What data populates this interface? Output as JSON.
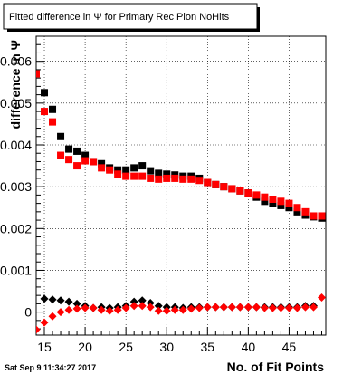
{
  "chart_data": {
    "type": "scatter",
    "title": "Fitted difference in Ψ  for Primary Rec Pion NoHits",
    "xlabel": "No. of Fit Points",
    "ylabel": "difference in Ψ",
    "timestamp": "Sat Sep  9 11:34:27 2017",
    "xlim": [
      14,
      49.5
    ],
    "ylim": [
      -0.00055,
      0.0066
    ],
    "x_ticks": [
      15,
      20,
      25,
      30,
      35,
      40,
      45
    ],
    "x_tick_labels": [
      "15",
      "20",
      "25",
      "30",
      "35",
      "40",
      "45"
    ],
    "y_ticks": [
      0,
      0.001,
      0.002,
      0.003,
      0.004,
      0.005,
      0.006
    ],
    "y_tick_labels": [
      "0",
      "0.001",
      "0.002",
      "0.003",
      "0.004",
      "0.005",
      "0.006"
    ],
    "grid": true,
    "series": [
      {
        "color": "#000000",
        "marker": "square",
        "x": [
          14,
          15,
          16,
          17,
          18,
          19,
          20,
          21,
          22,
          23,
          24,
          25,
          26,
          27,
          28,
          29,
          30,
          31,
          32,
          33,
          34,
          35,
          36,
          37,
          38,
          39,
          40,
          41,
          42,
          43,
          44,
          45,
          46,
          47,
          48,
          49
        ],
        "values": [
          0.0057,
          0.00525,
          0.00485,
          0.0042,
          0.0039,
          0.00385,
          0.00375,
          0.0036,
          0.00355,
          0.00345,
          0.0034,
          0.0034,
          0.00345,
          0.0035,
          0.00338,
          0.00332,
          0.0033,
          0.00328,
          0.00325,
          0.00325,
          0.0032,
          0.0031,
          0.00305,
          0.003,
          0.00295,
          0.0029,
          0.00285,
          0.00275,
          0.00265,
          0.0026,
          0.00255,
          0.0025,
          0.0024,
          0.00232,
          0.00228,
          0.00225
        ]
      },
      {
        "color": "#ff0000",
        "marker": "square",
        "x": [
          14,
          15,
          16,
          17,
          18,
          19,
          20,
          21,
          22,
          23,
          24,
          25,
          26,
          27,
          28,
          29,
          30,
          31,
          32,
          33,
          34,
          35,
          36,
          37,
          38,
          39,
          40,
          41,
          42,
          43,
          44,
          45,
          46,
          47,
          48,
          49
        ],
        "values": [
          0.0057,
          0.0048,
          0.00455,
          0.00375,
          0.00365,
          0.0035,
          0.00362,
          0.0036,
          0.00345,
          0.0034,
          0.0033,
          0.00325,
          0.00325,
          0.00325,
          0.0032,
          0.00318,
          0.0032,
          0.0032,
          0.00318,
          0.00318,
          0.00315,
          0.0031,
          0.00305,
          0.003,
          0.00295,
          0.0029,
          0.00285,
          0.0028,
          0.00275,
          0.0027,
          0.00265,
          0.0026,
          0.0025,
          0.0024,
          0.0023,
          0.0023
        ]
      },
      {
        "color": "#000000",
        "marker": "diamond",
        "x": [
          15,
          16,
          17,
          18,
          19,
          20,
          21,
          22,
          23,
          24,
          25,
          26,
          27,
          28,
          29,
          30,
          31,
          32,
          33,
          34,
          35,
          36,
          37,
          38,
          39,
          40,
          41,
          42,
          43,
          44,
          45,
          46,
          47,
          48
        ],
        "values": [
          0.00032,
          0.0003,
          0.00028,
          0.00025,
          0.0002,
          0.00015,
          0.0001,
          0.00012,
          0.0001,
          0.00012,
          0.00015,
          0.00025,
          0.00028,
          0.00022,
          0.00015,
          0.00012,
          0.00012,
          0.0001,
          0.00012,
          0.00012,
          0.00012,
          0.00012,
          0.00012,
          0.00012,
          0.00012,
          0.00012,
          0.00012,
          0.00012,
          0.00012,
          0.00012,
          0.00012,
          0.00012,
          0.00015,
          0.00015
        ]
      },
      {
        "color": "#ff0000",
        "marker": "diamond",
        "x": [
          14,
          15,
          16,
          17,
          18,
          19,
          20,
          21,
          22,
          23,
          24,
          25,
          26,
          27,
          28,
          29,
          30,
          31,
          32,
          33,
          34,
          35,
          36,
          37,
          38,
          39,
          40,
          41,
          42,
          43,
          44,
          45,
          46,
          47,
          48,
          49
        ],
        "values": [
          -0.00042,
          -0.00025,
          -0.0001,
          0.0,
          5e-05,
          8e-05,
          0.0001,
          0.0001,
          5e-05,
          3e-05,
          5e-05,
          0.0001,
          0.00015,
          0.00015,
          0.00012,
          3e-05,
          3e-05,
          5e-05,
          5e-05,
          8e-05,
          0.0001,
          0.00012,
          0.00012,
          0.00012,
          0.00012,
          0.00012,
          0.00012,
          0.00012,
          0.0001,
          0.0001,
          0.0001,
          0.0001,
          0.0001,
          0.00012,
          0.00012,
          0.00035
        ]
      }
    ]
  }
}
